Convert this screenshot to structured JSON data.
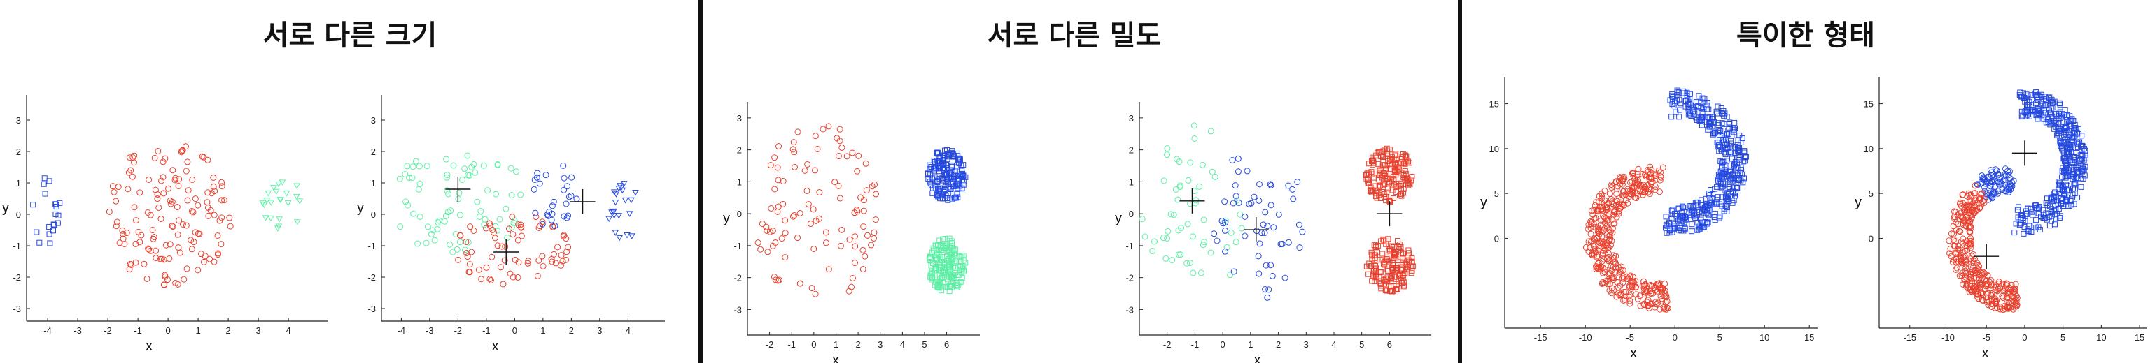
{
  "titles": [
    "서로 다른 크기",
    "서로 다른 밀도",
    "특이한 형태"
  ],
  "colors": {
    "red": "#e8412e",
    "green": "#5ef0a6",
    "blue": "#2449e0",
    "centroid": "#111111"
  },
  "chart_data": [
    {
      "type": "scatter",
      "title": "",
      "xlabel": "x",
      "ylabel": "y",
      "xlim": [
        -4.7,
        5.3
      ],
      "ylim": [
        -3.4,
        3.8
      ],
      "xticks": [
        -4,
        -3,
        -2,
        -1,
        0,
        1,
        2,
        3,
        4
      ],
      "yticks": [
        -3,
        -2,
        -1,
        0,
        1,
        2,
        3
      ],
      "series": [
        {
          "shape": "circle",
          "color": "red",
          "region": {
            "kind": "disk",
            "cx": 0,
            "cy": 0,
            "rx": 2.1,
            "ry": 2.3,
            "n": 140
          },
          "seed": 11
        },
        {
          "shape": "square",
          "color": "blue",
          "region": {
            "kind": "disk",
            "cx": -4.1,
            "cy": 0.1,
            "rx": 0.55,
            "ry": 1.1,
            "n": 20
          },
          "seed": 12
        },
        {
          "shape": "triangle",
          "color": "green",
          "region": {
            "kind": "disk",
            "cx": 3.8,
            "cy": 0.3,
            "rx": 0.7,
            "ry": 0.9,
            "n": 22
          },
          "seed": 13
        }
      ],
      "centroids": []
    },
    {
      "type": "scatter",
      "title": "",
      "xlabel": "x",
      "ylabel": "y",
      "xlim": [
        -4.7,
        5.3
      ],
      "ylim": [
        -3.4,
        3.8
      ],
      "xticks": [
        -4,
        -3,
        -2,
        -1,
        0,
        1,
        2,
        3,
        4
      ],
      "yticks": [
        -3,
        -2,
        -1,
        0,
        1,
        2,
        3
      ],
      "series": [
        {
          "shape": "circle",
          "color": "green",
          "region": {
            "kind": "disk",
            "cx": -2.0,
            "cy": 0.5,
            "rx": 2.4,
            "ry": 1.8,
            "n": 75
          },
          "seed": 21
        },
        {
          "shape": "circle",
          "color": "red",
          "region": {
            "kind": "disk",
            "cx": -0.1,
            "cy": -1.1,
            "rx": 2.0,
            "ry": 1.2,
            "n": 70
          },
          "seed": 22
        },
        {
          "shape": "circle",
          "color": "blue",
          "region": {
            "kind": "disk",
            "cx": 1.4,
            "cy": 0.6,
            "rx": 0.8,
            "ry": 1.3,
            "n": 28
          },
          "seed": 23
        },
        {
          "shape": "triangle",
          "color": "blue",
          "region": {
            "kind": "disk",
            "cx": 3.9,
            "cy": 0.1,
            "rx": 0.6,
            "ry": 0.9,
            "n": 22
          },
          "seed": 24
        }
      ],
      "centroids": [
        [
          -2.0,
          0.8
        ],
        [
          -0.3,
          -1.2
        ],
        [
          2.4,
          0.4
        ]
      ]
    },
    {
      "type": "scatter",
      "title": "",
      "xlabel": "x",
      "ylabel": "y",
      "xlim": [
        -3,
        7.5
      ],
      "ylim": [
        -3.8,
        3.5
      ],
      "xticks": [
        -2,
        -1,
        0,
        1,
        2,
        3,
        4,
        5,
        6
      ],
      "yticks": [
        -3,
        -2,
        -1,
        0,
        1,
        2,
        3
      ],
      "series": [
        {
          "shape": "circle",
          "color": "red",
          "region": {
            "kind": "disk",
            "cx": 0.1,
            "cy": 0.0,
            "rx": 2.9,
            "ry": 2.9,
            "n": 100
          },
          "seed": 31
        },
        {
          "shape": "square",
          "color": "blue",
          "region": {
            "kind": "disk",
            "cx": 6.0,
            "cy": 1.2,
            "rx": 0.85,
            "ry": 0.85,
            "n": 180
          },
          "seed": 32
        },
        {
          "shape": "square",
          "color": "green",
          "region": {
            "kind": "disk",
            "cx": 6.0,
            "cy": -1.6,
            "rx": 0.85,
            "ry": 0.85,
            "n": 180
          },
          "seed": 33
        }
      ],
      "centroids": []
    },
    {
      "type": "scatter",
      "title": "",
      "xlabel": "x",
      "ylabel": "y",
      "xlim": [
        -3,
        7.5
      ],
      "ylim": [
        -3.8,
        3.5
      ],
      "xticks": [
        -2,
        -1,
        0,
        1,
        2,
        3,
        4,
        5,
        6
      ],
      "yticks": [
        -3,
        -2,
        -1,
        0,
        1,
        2,
        3
      ],
      "series": [
        {
          "shape": "circle",
          "color": "green",
          "region": {
            "kind": "disk",
            "cx": -1.0,
            "cy": 0.0,
            "rx": 1.9,
            "ry": 2.8,
            "n": 55
          },
          "seed": 41
        },
        {
          "shape": "circle",
          "color": "blue",
          "region": {
            "kind": "disk",
            "cx": 1.3,
            "cy": -0.3,
            "rx": 1.7,
            "ry": 2.5,
            "n": 55
          },
          "seed": 42
        },
        {
          "shape": "square",
          "color": "red",
          "region": {
            "kind": "disk",
            "cx": 6.0,
            "cy": 1.2,
            "rx": 0.85,
            "ry": 0.85,
            "n": 170
          },
          "seed": 43
        },
        {
          "shape": "square",
          "color": "red",
          "region": {
            "kind": "disk",
            "cx": 6.0,
            "cy": -1.6,
            "rx": 0.85,
            "ry": 0.85,
            "n": 170
          },
          "seed": 44
        }
      ],
      "centroids": [
        [
          -1.1,
          0.4
        ],
        [
          1.2,
          -0.5
        ],
        [
          6.0,
          0.0
        ]
      ]
    },
    {
      "type": "scatter",
      "title": "",
      "xlabel": "x",
      "ylabel": "y",
      "xlim": [
        -19,
        16
      ],
      "ylim": [
        -10,
        18
      ],
      "xticks": [
        -15,
        -10,
        -5,
        0,
        5,
        10,
        15
      ],
      "yticks": [
        0,
        5,
        10,
        15
      ],
      "series": [
        {
          "shape": "square",
          "color": "blue",
          "region": {
            "kind": "arc",
            "cx": 0,
            "cy": 8.5,
            "r": 6.5,
            "a0": -100,
            "a1": 95,
            "w": 3.0,
            "n": 420
          },
          "seed": 51
        },
        {
          "shape": "circle",
          "color": "red",
          "region": {
            "kind": "arc",
            "cx": -2,
            "cy": 0,
            "r": 6.5,
            "a0": 85,
            "a1": 280,
            "w": 3.0,
            "n": 420
          },
          "seed": 52
        }
      ],
      "centroids": []
    },
    {
      "type": "scatter",
      "title": "",
      "xlabel": "x",
      "ylabel": "y",
      "xlim": [
        -19,
        16
      ],
      "ylim": [
        -10,
        18
      ],
      "xticks": [
        -15,
        -10,
        -5,
        0,
        5,
        10,
        15
      ],
      "yticks": [
        0,
        5,
        10,
        15
      ],
      "series": [
        {
          "shape": "square",
          "color": "blue",
          "region": {
            "kind": "arc",
            "cx": 0,
            "cy": 8.5,
            "r": 6.5,
            "a0": -100,
            "a1": 95,
            "w": 3.0,
            "n": 420
          },
          "seed": 61
        },
        {
          "shape": "circle",
          "color": "blue",
          "region": {
            "kind": "arc",
            "cx": -2,
            "cy": 0,
            "r": 6.5,
            "a0": 85,
            "a1": 125,
            "w": 3.0,
            "n": 80
          },
          "seed": 62
        },
        {
          "shape": "circle",
          "color": "red",
          "region": {
            "kind": "arc",
            "cx": -2,
            "cy": 0,
            "r": 6.5,
            "a0": 125,
            "a1": 280,
            "w": 3.0,
            "n": 340
          },
          "seed": 63
        }
      ],
      "centroids": [
        [
          0,
          9.5
        ],
        [
          -5,
          -2
        ]
      ]
    }
  ]
}
